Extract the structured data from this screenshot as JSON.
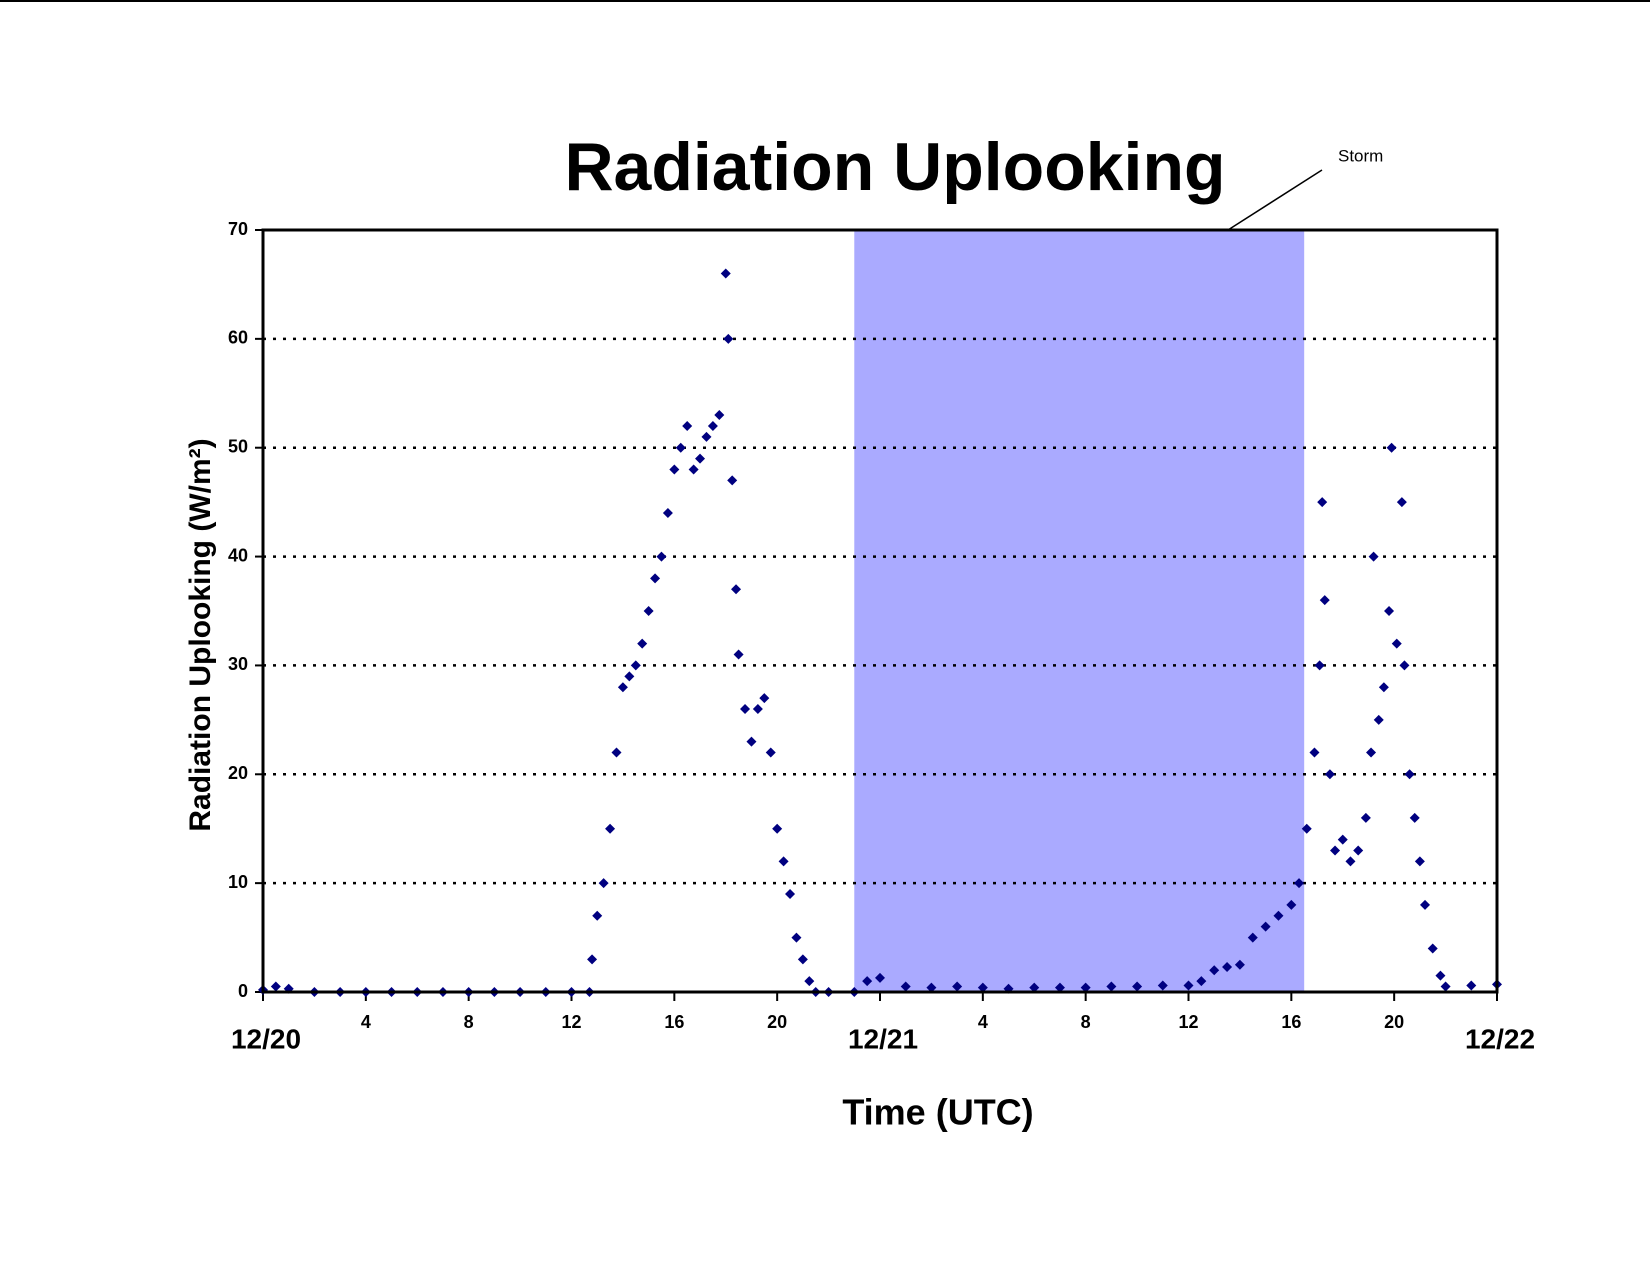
{
  "chart_data": {
    "type": "scatter",
    "title": "Radiation Uplooking",
    "x_label": "Time (UTC)",
    "y_label": "Radiation Uplooking (W/m²)",
    "color": "#000080",
    "grid": true,
    "xlim": [
      0,
      48
    ],
    "ylim": [
      0,
      70
    ],
    "yticks": [
      0,
      10,
      20,
      30,
      40,
      50,
      60,
      70
    ],
    "xticks": [
      {
        "value": 0,
        "label": "12/20"
      },
      4,
      8,
      12,
      16,
      20,
      {
        "value": 24,
        "label": "12/21"
      },
      {
        "value": 28,
        "label": "4"
      },
      {
        "value": 32,
        "label": "8"
      },
      {
        "value": 36,
        "label": "12"
      },
      {
        "value": 40,
        "label": "16"
      },
      {
        "value": 44,
        "label": "20"
      },
      {
        "value": 48,
        "label": "12/22"
      }
    ],
    "shaded_region": {
      "label": "Storm",
      "x": [
        23,
        40.5
      ],
      "color": "#aaaaff"
    },
    "x": [
      0,
      0.5,
      1,
      2,
      3,
      4,
      5,
      6,
      7,
      8,
      9,
      10,
      11,
      12,
      12.7,
      12.8,
      13,
      13.25,
      13.5,
      13.75,
      14,
      14.25,
      14.5,
      14.75,
      15,
      15.25,
      15.5,
      15.75,
      16,
      16.25,
      16.5,
      16.75,
      17,
      17.25,
      17.5,
      17.75,
      18,
      18.1,
      18.25,
      18.4,
      18.5,
      18.75,
      19,
      19.25,
      19.5,
      19.75,
      20,
      20.25,
      20.5,
      20.75,
      21,
      21.25,
      21.5,
      22,
      23,
      23.5,
      24,
      25,
      26,
      27,
      28,
      29,
      30,
      31,
      32,
      33,
      34,
      35,
      36,
      36.5,
      37,
      37.5,
      38,
      38.5,
      39,
      39.5,
      40,
      40.3,
      40.6,
      40.9,
      41.1,
      41.2,
      41.3,
      41.5,
      41.7,
      42,
      42.3,
      42.6,
      42.9,
      43.1,
      43.2,
      43.4,
      43.6,
      43.8,
      43.9,
      44.1,
      44.3,
      44.4,
      44.6,
      44.8,
      45,
      45.2,
      45.5,
      45.8,
      46,
      47,
      48
    ],
    "y": [
      0.2,
      0.5,
      0.3,
      0,
      0,
      0,
      0,
      0,
      0,
      0,
      0,
      0,
      0,
      0,
      0,
      3,
      7,
      10,
      15,
      22,
      28,
      29,
      30,
      32,
      35,
      38,
      40,
      44,
      48,
      50,
      52,
      48,
      49,
      51,
      52,
      53,
      66,
      60,
      47,
      37,
      31,
      26,
      23,
      26,
      27,
      22,
      15,
      12,
      9,
      5,
      3,
      1,
      0,
      0,
      0,
      1,
      1.3,
      0.5,
      0.4,
      0.5,
      0.4,
      0.3,
      0.4,
      0.4,
      0.4,
      0.5,
      0.5,
      0.6,
      0.6,
      1,
      2,
      2.3,
      2.5,
      5,
      6,
      7,
      8,
      10,
      15,
      22,
      30,
      45,
      36,
      20,
      13,
      14,
      12,
      13,
      16,
      22,
      40,
      25,
      28,
      35,
      50,
      32,
      45,
      30,
      20,
      16,
      12,
      8,
      4,
      1.5,
      0.5,
      0.6,
      0.7
    ]
  }
}
